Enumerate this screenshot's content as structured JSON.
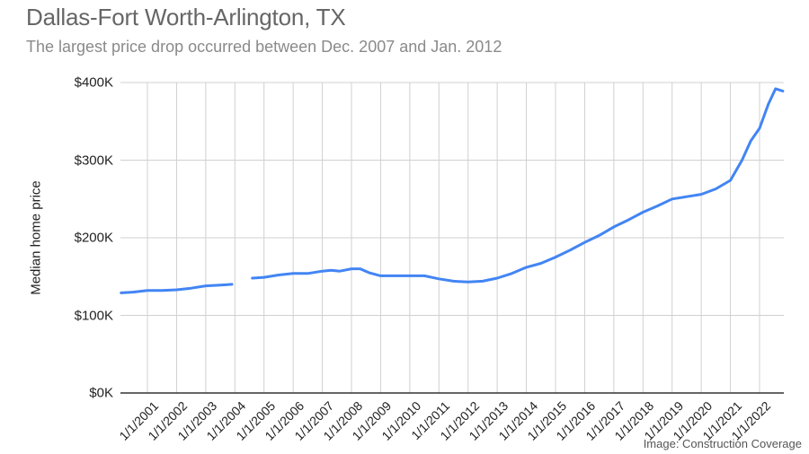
{
  "chart_data": {
    "type": "line",
    "title": "Dallas-Fort Worth-Arlington, TX",
    "subtitle": "The largest price drop occurred between Dec. 2007 and Jan. 2012",
    "xlabel": "",
    "ylabel": "Median home price",
    "ylim": [
      0,
      400000
    ],
    "yticks": [
      "$0K",
      "$100K",
      "$200K",
      "$300K",
      "$400K"
    ],
    "xticks": [
      "1/1/2001",
      "1/1/2002",
      "1/1/2003",
      "1/1/2004",
      "1/1/2005",
      "1/1/2006",
      "1/1/2007",
      "1/1/2008",
      "1/1/2009",
      "1/1/2010",
      "1/1/2011",
      "1/1/2012",
      "1/1/2013",
      "1/1/2014",
      "1/1/2015",
      "1/1/2016",
      "1/1/2017",
      "1/1/2018",
      "1/1/2019",
      "1/1/2020",
      "1/1/2021",
      "1/1/2022"
    ],
    "grid": true,
    "legend": "none",
    "line_color": "#4285f4",
    "series": [
      {
        "name": "Median home price",
        "x": [
          2000.1,
          2000.5,
          2001.0,
          2001.5,
          2002.0,
          2002.5,
          2003.0,
          2003.5,
          2003.9,
          2004.3,
          2004.6,
          2005.0,
          2005.5,
          2006.0,
          2006.5,
          2007.0,
          2007.3,
          2007.6,
          2008.0,
          2008.3,
          2008.6,
          2009.0,
          2009.5,
          2010.0,
          2010.5,
          2011.0,
          2011.5,
          2012.0,
          2012.5,
          2013.0,
          2013.5,
          2014.0,
          2014.5,
          2015.0,
          2015.5,
          2016.0,
          2016.5,
          2017.0,
          2017.5,
          2018.0,
          2018.5,
          2019.0,
          2019.5,
          2020.0,
          2020.5,
          2021.0,
          2021.4,
          2021.7,
          2022.0,
          2022.3,
          2022.55,
          2022.8
        ],
        "values": [
          129000,
          130000,
          132000,
          132000,
          133000,
          135000,
          138000,
          139000,
          140000,
          null,
          148000,
          149000,
          152000,
          154000,
          154000,
          157000,
          158000,
          157000,
          160000,
          160000,
          155000,
          151000,
          151000,
          151000,
          151000,
          147000,
          144000,
          143000,
          144000,
          148000,
          154000,
          162000,
          167000,
          175000,
          184000,
          194000,
          203000,
          214000,
          223000,
          233000,
          241000,
          250000,
          253000,
          256000,
          263000,
          274000,
          300000,
          325000,
          341000,
          372000,
          392000,
          389000
        ]
      }
    ]
  },
  "credit": "Image: Construction Coverage"
}
